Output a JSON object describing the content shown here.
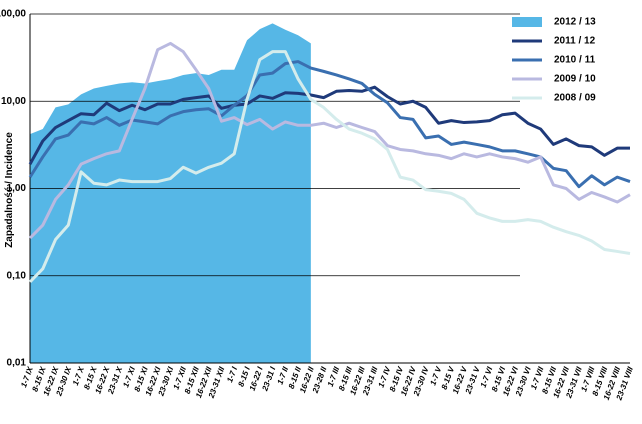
{
  "chart_data": {
    "type": "line",
    "y_label": "Zapadalność / Incidence",
    "log_y": true,
    "grid": true,
    "legend": "upper right",
    "categories": [
      "1-7 IX",
      "8-15 IX",
      "16-22 IX",
      "23-30 IX",
      "1-7 X",
      "8-15 X",
      "16-22 X",
      "23-31 X",
      "1-7 XI",
      "8-15 XI",
      "16-22 XI",
      "23-30 XI",
      "1-7 XII",
      "8-15 XII",
      "16-22 XII",
      "23-31 XII",
      "1-7 I",
      "8-15 I",
      "16-22 I",
      "23-31 I",
      "1-7 II",
      "8-15 II",
      "16-22 II",
      "23-28 II",
      "1-7 III",
      "8-15 III",
      "16-22 III",
      "23-31 III",
      "1-7 IV",
      "8-15 IV",
      "16-22 IV",
      "23-30 IV",
      "1-7 V",
      "8-15 V",
      "16-22 V",
      "23-31 V",
      "1-7 VI",
      "8-15 VI",
      "16-22 VI",
      "23-30 VI",
      "1-7 VII",
      "8-15 VII",
      "16-22 VII",
      "23-31 VII",
      "1-7 VIII",
      "8-15 VIII",
      "16-22 VIII",
      "23-31 VIII"
    ],
    "ylim": [
      0.01,
      100
    ],
    "yticks": [
      {
        "value": 0.01,
        "label": "0,01"
      },
      {
        "value": 0.1,
        "label": "0,10"
      },
      {
        "value": 1,
        "label": "1,00"
      },
      {
        "value": 10,
        "label": "10,00"
      },
      {
        "value": 100,
        "label": "100,00"
      }
    ],
    "series": [
      {
        "name": "2012 / 13",
        "color": "#56b7e6",
        "style": "area",
        "values": [
          4.2,
          4.8,
          8.5,
          9.2,
          12,
          14,
          15,
          16,
          16.5,
          16,
          17,
          18,
          20,
          21,
          20,
          23,
          23,
          50,
          67,
          78,
          66,
          57,
          46,
          null,
          null,
          null,
          null,
          null,
          null,
          null,
          null,
          null,
          null,
          null,
          null,
          null,
          null,
          null,
          null,
          null,
          null,
          null,
          null,
          null,
          null,
          null,
          null,
          null
        ]
      },
      {
        "name": "2011 / 12",
        "color": "#1f3a7a",
        "values": [
          1.9,
          3.5,
          5,
          6,
          7.2,
          7,
          9.5,
          7.8,
          9,
          8,
          9.3,
          9.3,
          10.5,
          11,
          11.5,
          8.3,
          9,
          9.3,
          11.5,
          10.8,
          12.5,
          12.3,
          11.8,
          11,
          13,
          13.3,
          13,
          14.5,
          11.3,
          9.3,
          10,
          8.5,
          5.6,
          6,
          5.7,
          5.8,
          6,
          7,
          7.3,
          5.6,
          4.8,
          3.2,
          3.7,
          3.1,
          3,
          2.4,
          2.9,
          2.9
        ]
      },
      {
        "name": "2010 / 11",
        "color": "#3a6fb0",
        "values": [
          1.35,
          2.3,
          3.7,
          4.1,
          5.8,
          5.5,
          6.5,
          5.3,
          6.1,
          5.8,
          5.5,
          6.8,
          7.6,
          8,
          8.2,
          6.8,
          9,
          11.6,
          20,
          21,
          27,
          28.5,
          24,
          22,
          20,
          18,
          16,
          12,
          9.6,
          6.5,
          6.2,
          3.8,
          4,
          3.2,
          3.4,
          3.2,
          3,
          2.7,
          2.7,
          2.5,
          2.3,
          1.7,
          1.6,
          1.05,
          1.4,
          1.1,
          1.35,
          1.2
        ]
      },
      {
        "name": "2009 / 10",
        "color": "#b9b9e0",
        "values": [
          0.27,
          0.38,
          0.75,
          1.1,
          1.9,
          2.2,
          2.5,
          2.7,
          6.2,
          14,
          39,
          46,
          37,
          23,
          14,
          5.9,
          6.5,
          5.4,
          6.2,
          4.8,
          5.8,
          5.3,
          5.3,
          5.6,
          5,
          5.6,
          5,
          4.5,
          3.1,
          2.8,
          2.7,
          2.5,
          2.4,
          2.2,
          2.5,
          2.3,
          2.5,
          2.3,
          2.2,
          2,
          2.3,
          1.1,
          1,
          0.75,
          0.9,
          0.8,
          0.7,
          0.85
        ]
      },
      {
        "name": "2008 / 09",
        "color": "#d4ecec",
        "values": [
          0.085,
          0.12,
          0.26,
          0.38,
          1.55,
          1.15,
          1.1,
          1.25,
          1.2,
          1.2,
          1.2,
          1.3,
          1.75,
          1.5,
          1.75,
          1.95,
          2.5,
          10.5,
          30,
          37,
          37,
          18,
          10.5,
          8.5,
          6.2,
          4.8,
          4.3,
          3.7,
          2.8,
          1.35,
          1.25,
          0.97,
          0.93,
          0.88,
          0.75,
          0.52,
          0.46,
          0.42,
          0.42,
          0.44,
          0.42,
          0.36,
          0.32,
          0.29,
          0.25,
          0.2,
          0.19,
          0.18
        ]
      }
    ]
  }
}
